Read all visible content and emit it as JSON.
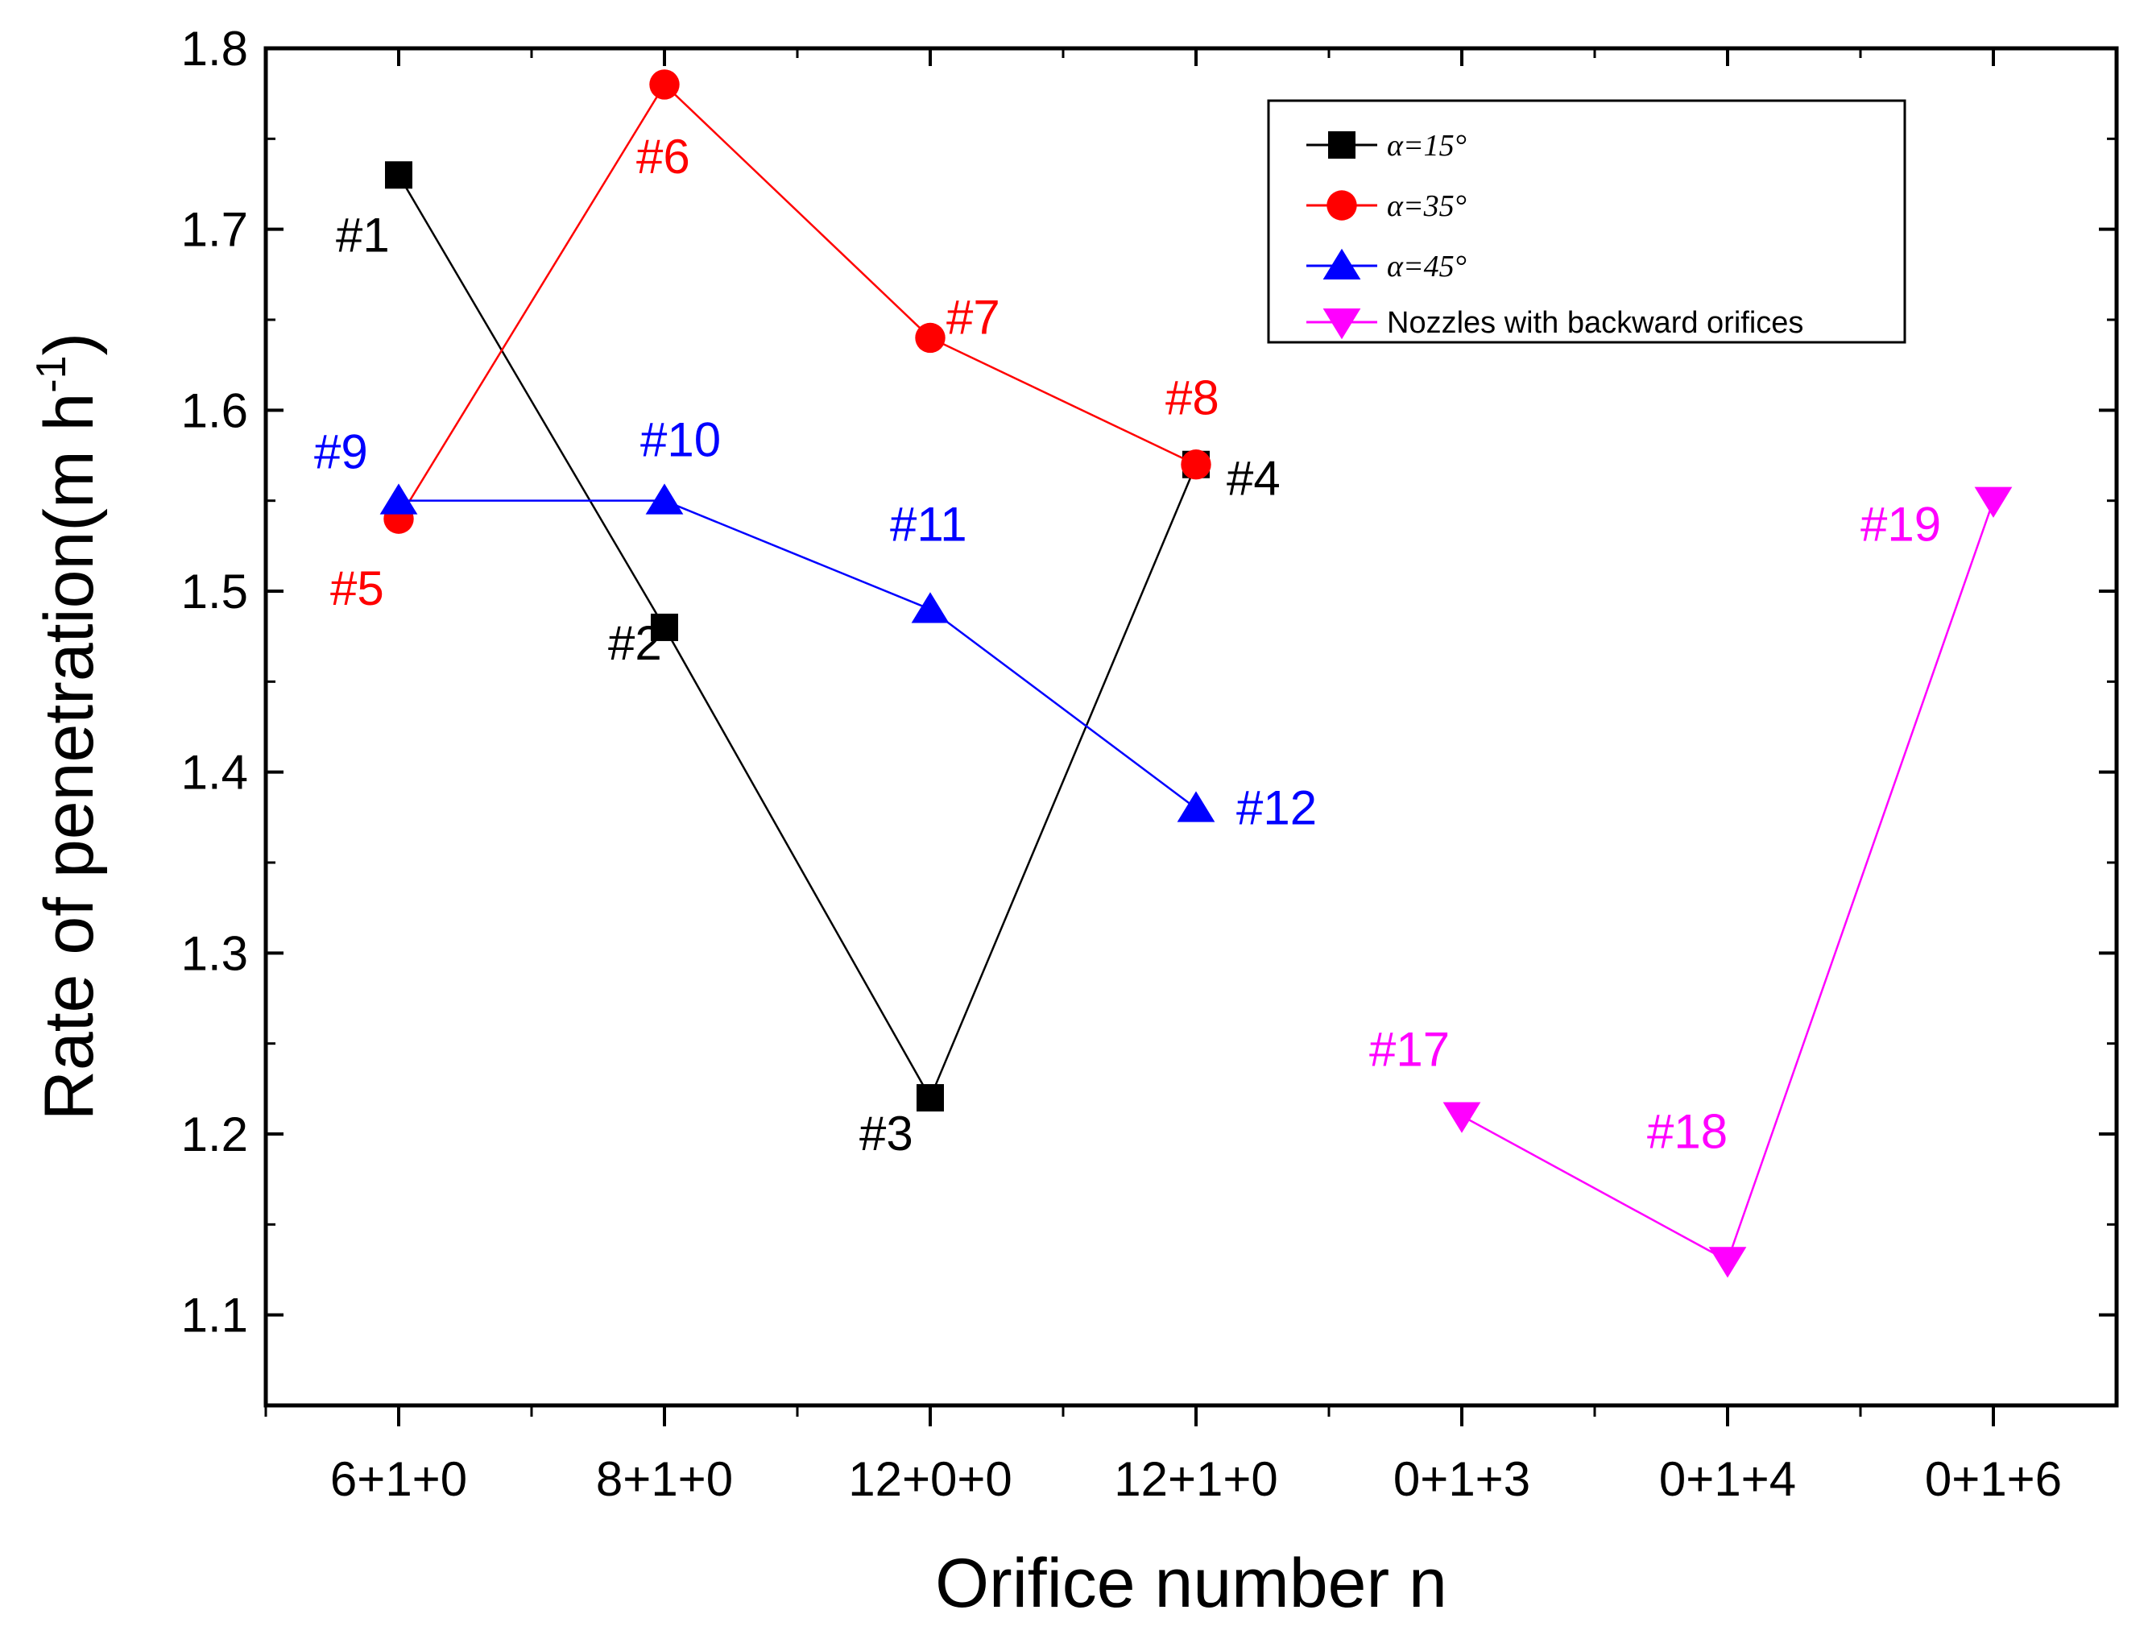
{
  "chart_data": {
    "type": "line",
    "xlabel": "Orifice number n",
    "ylabel": "Rate of penetration(m h",
    "ylabel_sup": "-1",
    "ylabel_close": ")",
    "categories": [
      "6+1+0",
      "8+1+0",
      "12+0+0",
      "12+1+0",
      "0+1+3",
      "0+1+4",
      "0+1+6"
    ],
    "ylim": [
      1.05,
      1.8
    ],
    "yticks": [
      1.1,
      1.2,
      1.3,
      1.4,
      1.5,
      1.6,
      1.7,
      1.8
    ],
    "grid": false,
    "legend_position": "top-right",
    "series": [
      {
        "name": "α=15°",
        "color": "#000000",
        "marker": "square",
        "points": [
          {
            "x": "6+1+0",
            "y": 1.73,
            "label": "#1"
          },
          {
            "x": "8+1+0",
            "y": 1.48,
            "label": "#2"
          },
          {
            "x": "12+0+0",
            "y": 1.22,
            "label": "#3"
          },
          {
            "x": "12+1+0",
            "y": 1.57,
            "label": "#4"
          }
        ]
      },
      {
        "name": "α=35°",
        "color": "#ff0000",
        "marker": "circle",
        "points": [
          {
            "x": "6+1+0",
            "y": 1.54,
            "label": "#5"
          },
          {
            "x": "8+1+0",
            "y": 1.78,
            "label": "#6"
          },
          {
            "x": "12+0+0",
            "y": 1.64,
            "label": "#7"
          },
          {
            "x": "12+1+0",
            "y": 1.57,
            "label": "#8"
          }
        ]
      },
      {
        "name": "α=45°",
        "color": "#0000ff",
        "marker": "triangle-up",
        "points": [
          {
            "x": "6+1+0",
            "y": 1.55,
            "label": "#9"
          },
          {
            "x": "8+1+0",
            "y": 1.55,
            "label": "#10"
          },
          {
            "x": "12+0+0",
            "y": 1.49,
            "label": "#11"
          },
          {
            "x": "12+1+0",
            "y": 1.38,
            "label": "#12"
          }
        ]
      },
      {
        "name": "Nozzles with backward orifices",
        "color": "#ff00ff",
        "marker": "triangle-down",
        "points": [
          {
            "x": "0+1+3",
            "y": 1.21,
            "label": "#17"
          },
          {
            "x": "0+1+4",
            "y": 1.13,
            "label": "#18"
          },
          {
            "x": "0+1+6",
            "y": 1.55,
            "label": "#19"
          }
        ]
      }
    ]
  }
}
